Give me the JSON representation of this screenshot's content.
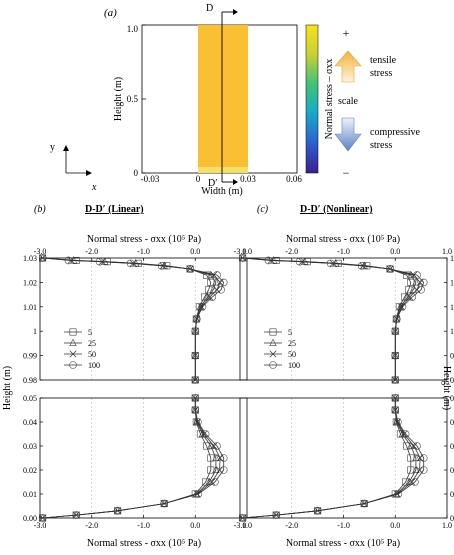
{
  "panel_a": {
    "label": "(a)",
    "section_top": "D",
    "section_bottom": "D′",
    "y_axis_label": "Height (m)",
    "x_axis_label": "Width (m)",
    "y_ticks": [
      "0",
      "0.5",
      "1.0"
    ],
    "x_ticks": [
      "-0.03",
      "0",
      "0.03",
      "0.06"
    ],
    "axes_y": "y",
    "axes_x": "x",
    "colorbar_label": "Normal stress – σxx",
    "plus_sign": "+",
    "minus_sign": "−",
    "tensile_label": [
      "tensile",
      "stress"
    ],
    "scale_label": "scale",
    "compressive_label": [
      "compressive",
      "stress"
    ]
  },
  "panel_b": {
    "label": "(b)",
    "title": "D-D′ (Linear)",
    "top_axis_label": "Normal stress - σxx (10⁵ Pa)",
    "bottom_axis_label": "Normal stress - σxx (10⁵ Pa)",
    "y_label": "Height (m)"
  },
  "panel_c": {
    "label": "(c)",
    "title": "D-D′ (Nonlinear)",
    "top_axis_label": "Normal stress - σxx (10⁵ Pa)",
    "bottom_axis_label": "Normal stress - σxx (10⁵ Pa)",
    "y_label": "Height (m)"
  },
  "chart_data": [
    {
      "type": "line",
      "panel": "b",
      "x_ticks": [
        "-3.0",
        "-2.0",
        "-1.0",
        "0.0",
        "1.0"
      ],
      "xlim": [
        -3.0,
        1.0
      ],
      "upper_y_ticks": [
        "0.98",
        "0.99",
        "1",
        "1.01",
        "1.02",
        "1.03"
      ],
      "upper_ylim": [
        0.98,
        1.03
      ],
      "lower_y_ticks": [
        "0.00",
        "0.01",
        "0.02",
        "0.03",
        "0.04",
        "0.05"
      ],
      "lower_ylim": [
        0.0,
        0.05
      ],
      "legend": [
        "5",
        "25",
        "50",
        "100"
      ],
      "upper_series": [
        {
          "name": "5",
          "points": [
            [
              -2.95,
              1.03
            ],
            [
              -2.3,
              1.029
            ],
            [
              -1.7,
              1.0285
            ],
            [
              -1.1,
              1.0278
            ],
            [
              -0.55,
              1.0268
            ],
            [
              -0.1,
              1.0255
            ],
            [
              0.22,
              1.023
            ],
            [
              0.3,
              1.02
            ],
            [
              0.26,
              1.017
            ],
            [
              0.18,
              1.014
            ],
            [
              0.08,
              1.01
            ],
            [
              0.02,
              1.005
            ],
            [
              0.0,
              1.0
            ],
            [
              0.0,
              0.99
            ],
            [
              0.0,
              0.98
            ]
          ]
        },
        {
          "name": "25",
          "points": [
            [
              -2.95,
              1.03
            ],
            [
              -2.35,
              1.029
            ],
            [
              -1.75,
              1.0285
            ],
            [
              -1.15,
              1.0278
            ],
            [
              -0.6,
              1.0268
            ],
            [
              -0.1,
              1.0255
            ],
            [
              0.3,
              1.023
            ],
            [
              0.4,
              1.02
            ],
            [
              0.35,
              1.017
            ],
            [
              0.24,
              1.014
            ],
            [
              0.1,
              1.01
            ],
            [
              0.02,
              1.005
            ],
            [
              0.0,
              1.0
            ],
            [
              0.0,
              0.99
            ],
            [
              0.0,
              0.98
            ]
          ]
        },
        {
          "name": "50",
          "points": [
            [
              -2.95,
              1.03
            ],
            [
              -2.4,
              1.029
            ],
            [
              -1.8,
              1.0285
            ],
            [
              -1.2,
              1.0278
            ],
            [
              -0.62,
              1.0268
            ],
            [
              -0.1,
              1.0255
            ],
            [
              0.36,
              1.023
            ],
            [
              0.48,
              1.02
            ],
            [
              0.42,
              1.017
            ],
            [
              0.28,
              1.014
            ],
            [
              0.12,
              1.01
            ],
            [
              0.03,
              1.005
            ],
            [
              0.0,
              1.0
            ],
            [
              0.0,
              0.99
            ],
            [
              0.0,
              0.98
            ]
          ]
        },
        {
          "name": "100",
          "points": [
            [
              -2.95,
              1.03
            ],
            [
              -2.45,
              1.029
            ],
            [
              -1.85,
              1.0285
            ],
            [
              -1.25,
              1.0278
            ],
            [
              -0.65,
              1.0268
            ],
            [
              -0.1,
              1.0255
            ],
            [
              0.42,
              1.023
            ],
            [
              0.55,
              1.02
            ],
            [
              0.5,
              1.017
            ],
            [
              0.33,
              1.014
            ],
            [
              0.14,
              1.01
            ],
            [
              0.03,
              1.005
            ],
            [
              0.0,
              1.0
            ],
            [
              0.0,
              0.99
            ],
            [
              0.0,
              0.98
            ]
          ]
        }
      ],
      "lower_series": [
        {
          "name": "5",
          "points": [
            [
              0.0,
              0.05
            ],
            [
              0.0,
              0.045
            ],
            [
              0.02,
              0.04
            ],
            [
              0.1,
              0.035
            ],
            [
              0.22,
              0.03
            ],
            [
              0.3,
              0.025
            ],
            [
              0.3,
              0.02
            ],
            [
              0.2,
              0.015
            ],
            [
              0.0,
              0.01
            ],
            [
              -0.6,
              0.006
            ],
            [
              -1.5,
              0.003
            ],
            [
              -2.3,
              0.0012
            ],
            [
              -2.95,
              0.0
            ]
          ]
        },
        {
          "name": "25",
          "points": [
            [
              0.0,
              0.05
            ],
            [
              0.0,
              0.045
            ],
            [
              0.03,
              0.04
            ],
            [
              0.14,
              0.035
            ],
            [
              0.3,
              0.03
            ],
            [
              0.4,
              0.025
            ],
            [
              0.4,
              0.02
            ],
            [
              0.27,
              0.015
            ],
            [
              0.02,
              0.01
            ],
            [
              -0.6,
              0.006
            ],
            [
              -1.5,
              0.003
            ],
            [
              -2.3,
              0.0012
            ],
            [
              -2.95,
              0.0
            ]
          ]
        },
        {
          "name": "50",
          "points": [
            [
              0.0,
              0.05
            ],
            [
              0.0,
              0.045
            ],
            [
              0.04,
              0.04
            ],
            [
              0.17,
              0.035
            ],
            [
              0.36,
              0.03
            ],
            [
              0.48,
              0.025
            ],
            [
              0.47,
              0.02
            ],
            [
              0.32,
              0.015
            ],
            [
              0.04,
              0.01
            ],
            [
              -0.6,
              0.006
            ],
            [
              -1.5,
              0.003
            ],
            [
              -2.3,
              0.0012
            ],
            [
              -2.95,
              0.0
            ]
          ]
        },
        {
          "name": "100",
          "points": [
            [
              0.0,
              0.05
            ],
            [
              0.0,
              0.045
            ],
            [
              0.05,
              0.04
            ],
            [
              0.2,
              0.035
            ],
            [
              0.42,
              0.03
            ],
            [
              0.55,
              0.025
            ],
            [
              0.55,
              0.02
            ],
            [
              0.38,
              0.015
            ],
            [
              0.06,
              0.01
            ],
            [
              -0.6,
              0.006
            ],
            [
              -1.5,
              0.003
            ],
            [
              -2.3,
              0.0012
            ],
            [
              -2.95,
              0.0
            ]
          ]
        }
      ]
    },
    {
      "type": "line",
      "panel": "c",
      "x_ticks": [
        "-3.0",
        "-2.0",
        "-1.0",
        "0.0",
        "1.0"
      ],
      "xlim": [
        -3.0,
        1.0
      ],
      "upper_y_ticks": [
        "0.98",
        "0.99",
        "1",
        "1.01",
        "1.02",
        "1.03"
      ],
      "upper_ylim": [
        0.98,
        1.03
      ],
      "lower_y_ticks": [
        "0.00",
        "0.01",
        "0.02",
        "0.03",
        "0.04",
        "0.05"
      ],
      "lower_ylim": [
        0.0,
        0.05
      ],
      "legend": [
        "5",
        "25",
        "50",
        "100"
      ],
      "upper_series": [
        {
          "name": "5",
          "points": [
            [
              -2.95,
              1.03
            ],
            [
              -2.3,
              1.029
            ],
            [
              -1.7,
              1.0285
            ],
            [
              -1.1,
              1.0278
            ],
            [
              -0.55,
              1.0268
            ],
            [
              -0.1,
              1.0255
            ],
            [
              0.22,
              1.023
            ],
            [
              0.3,
              1.02
            ],
            [
              0.26,
              1.017
            ],
            [
              0.18,
              1.014
            ],
            [
              0.08,
              1.01
            ],
            [
              0.02,
              1.005
            ],
            [
              0.0,
              1.0
            ],
            [
              0.0,
              0.99
            ],
            [
              0.0,
              0.98
            ]
          ]
        },
        {
          "name": "25",
          "points": [
            [
              -2.95,
              1.03
            ],
            [
              -2.35,
              1.029
            ],
            [
              -1.75,
              1.0285
            ],
            [
              -1.15,
              1.0278
            ],
            [
              -0.6,
              1.0268
            ],
            [
              -0.1,
              1.0255
            ],
            [
              0.3,
              1.023
            ],
            [
              0.4,
              1.02
            ],
            [
              0.35,
              1.017
            ],
            [
              0.24,
              1.014
            ],
            [
              0.1,
              1.01
            ],
            [
              0.02,
              1.005
            ],
            [
              0.0,
              1.0
            ],
            [
              0.0,
              0.99
            ],
            [
              0.0,
              0.98
            ]
          ]
        },
        {
          "name": "50",
          "points": [
            [
              -2.95,
              1.03
            ],
            [
              -2.4,
              1.029
            ],
            [
              -1.8,
              1.0285
            ],
            [
              -1.2,
              1.0278
            ],
            [
              -0.62,
              1.0268
            ],
            [
              -0.1,
              1.0255
            ],
            [
              0.36,
              1.023
            ],
            [
              0.48,
              1.02
            ],
            [
              0.42,
              1.017
            ],
            [
              0.28,
              1.014
            ],
            [
              0.12,
              1.01
            ],
            [
              0.03,
              1.005
            ],
            [
              0.0,
              1.0
            ],
            [
              0.0,
              0.99
            ],
            [
              0.0,
              0.98
            ]
          ]
        },
        {
          "name": "100",
          "points": [
            [
              -2.95,
              1.03
            ],
            [
              -2.45,
              1.029
            ],
            [
              -1.85,
              1.0285
            ],
            [
              -1.25,
              1.0278
            ],
            [
              -0.65,
              1.0268
            ],
            [
              -0.1,
              1.0255
            ],
            [
              0.42,
              1.023
            ],
            [
              0.55,
              1.02
            ],
            [
              0.5,
              1.017
            ],
            [
              0.33,
              1.014
            ],
            [
              0.14,
              1.01
            ],
            [
              0.03,
              1.005
            ],
            [
              0.0,
              1.0
            ],
            [
              0.0,
              0.99
            ],
            [
              0.0,
              0.98
            ]
          ]
        }
      ],
      "lower_series": [
        {
          "name": "5",
          "points": [
            [
              0.0,
              0.05
            ],
            [
              0.0,
              0.045
            ],
            [
              0.02,
              0.04
            ],
            [
              0.1,
              0.035
            ],
            [
              0.22,
              0.03
            ],
            [
              0.3,
              0.025
            ],
            [
              0.3,
              0.02
            ],
            [
              0.2,
              0.015
            ],
            [
              0.0,
              0.01
            ],
            [
              -0.6,
              0.006
            ],
            [
              -1.5,
              0.003
            ],
            [
              -2.3,
              0.0012
            ],
            [
              -2.95,
              0.0
            ]
          ]
        },
        {
          "name": "25",
          "points": [
            [
              0.0,
              0.05
            ],
            [
              0.0,
              0.045
            ],
            [
              0.03,
              0.04
            ],
            [
              0.14,
              0.035
            ],
            [
              0.3,
              0.03
            ],
            [
              0.4,
              0.025
            ],
            [
              0.4,
              0.02
            ],
            [
              0.27,
              0.015
            ],
            [
              0.02,
              0.01
            ],
            [
              -0.6,
              0.006
            ],
            [
              -1.5,
              0.003
            ],
            [
              -2.3,
              0.0012
            ],
            [
              -2.95,
              0.0
            ]
          ]
        },
        {
          "name": "50",
          "points": [
            [
              0.0,
              0.05
            ],
            [
              0.0,
              0.045
            ],
            [
              0.04,
              0.04
            ],
            [
              0.17,
              0.035
            ],
            [
              0.36,
              0.03
            ],
            [
              0.48,
              0.025
            ],
            [
              0.47,
              0.02
            ],
            [
              0.32,
              0.015
            ],
            [
              0.04,
              0.01
            ],
            [
              -0.6,
              0.006
            ],
            [
              -1.5,
              0.003
            ],
            [
              -2.3,
              0.0012
            ],
            [
              -2.95,
              0.0
            ]
          ]
        },
        {
          "name": "100",
          "points": [
            [
              0.0,
              0.05
            ],
            [
              0.0,
              0.045
            ],
            [
              0.05,
              0.04
            ],
            [
              0.2,
              0.035
            ],
            [
              0.42,
              0.03
            ],
            [
              0.55,
              0.025
            ],
            [
              0.55,
              0.02
            ],
            [
              0.38,
              0.015
            ],
            [
              0.06,
              0.01
            ],
            [
              -0.6,
              0.006
            ],
            [
              -1.5,
              0.003
            ],
            [
              -2.3,
              0.0012
            ],
            [
              -2.95,
              0.0
            ]
          ]
        }
      ]
    }
  ],
  "colors": {
    "wall_fill": "#f9c033",
    "tensile_arrow": "#f3b748",
    "compressive_arrow": "#6e93c9"
  }
}
